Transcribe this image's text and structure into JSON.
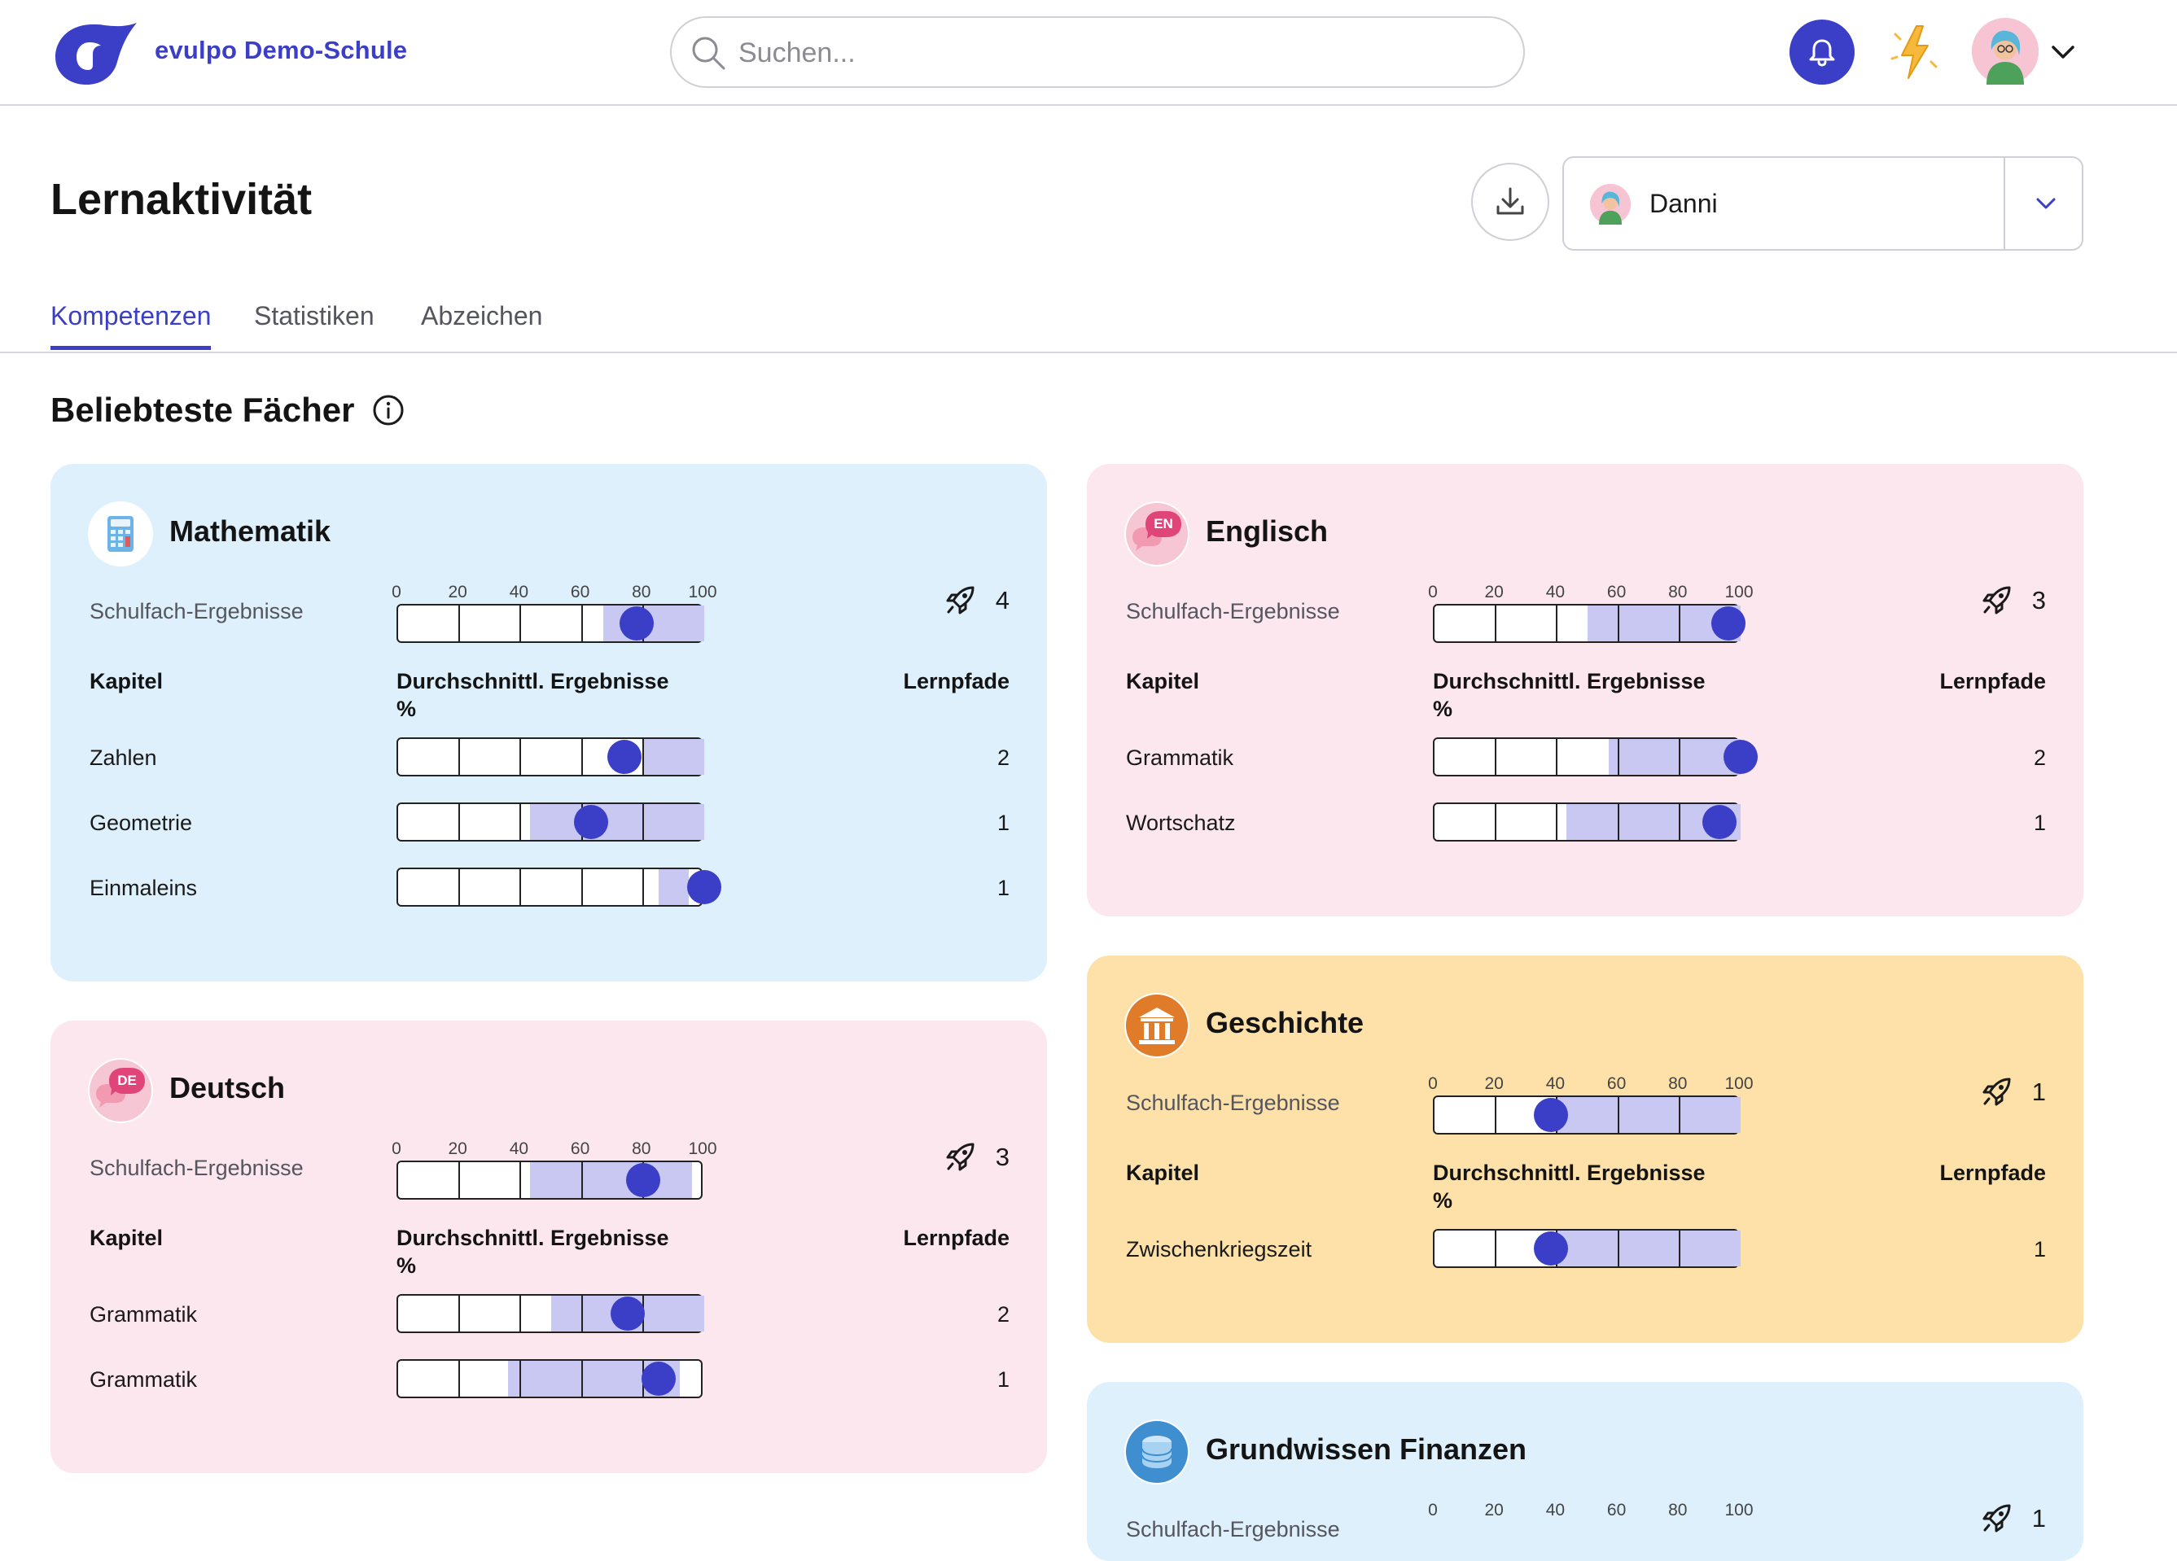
{
  "header": {
    "school_name": "evulpo Demo-Schule",
    "search_placeholder": "Suchen...",
    "accent_color": "#3b3ec7"
  },
  "page": {
    "title": "Lernaktivität",
    "user_select": {
      "selected": "Danni"
    }
  },
  "tabs": [
    {
      "label": "Kompetenzen",
      "active": true
    },
    {
      "label": "Statistiken",
      "active": false
    },
    {
      "label": "Abzeichen",
      "active": false
    }
  ],
  "section": {
    "title": "Beliebteste Fächer"
  },
  "common": {
    "results_label": "Schulfach-Ergebnisse",
    "col_chapter": "Kapitel",
    "col_avg_line1": "Durchschnittl. Ergebnisse",
    "col_avg_line2": "%",
    "col_paths": "Lernpfade",
    "ticks": [
      "0",
      "20",
      "40",
      "60",
      "80",
      "100"
    ]
  },
  "subjects": [
    {
      "id": "mathematik",
      "name": "Mathematik",
      "icon": "calculator-icon",
      "color": "blue",
      "lernpfade": "4",
      "overall": {
        "min": 67,
        "max": 100,
        "avg": 78
      },
      "chapters": [
        {
          "name": "Zahlen",
          "lernpfade": "2",
          "min": 80,
          "max": 100,
          "avg": 74
        },
        {
          "name": "Geometrie",
          "lernpfade": "1",
          "min": 43,
          "max": 100,
          "avg": 63
        },
        {
          "name": "Einmaleins",
          "lernpfade": "1",
          "min": 85,
          "max": 95,
          "avg": 100
        }
      ]
    },
    {
      "id": "englisch",
      "name": "Englisch",
      "icon": "speech-bubble-en-icon",
      "badge": "EN",
      "color": "pink",
      "lernpfade": "3",
      "overall": {
        "min": 50,
        "max": 100,
        "avg": 96
      },
      "chapters": [
        {
          "name": "Grammatik",
          "lernpfade": "2",
          "min": 57,
          "max": 100,
          "avg": 100
        },
        {
          "name": "Wortschatz",
          "lernpfade": "1",
          "min": 43,
          "max": 100,
          "avg": 93
        }
      ]
    },
    {
      "id": "deutsch",
      "name": "Deutsch",
      "icon": "speech-bubble-de-icon",
      "badge": "DE",
      "color": "pink",
      "lernpfade": "3",
      "overall": {
        "min": 43,
        "max": 96,
        "avg": 80
      },
      "chapters": [
        {
          "name": "Grammatik",
          "lernpfade": "2",
          "min": 50,
          "max": 100,
          "avg": 75
        },
        {
          "name": "Grammatik",
          "lernpfade": "1",
          "min": 36,
          "max": 92,
          "avg": 85
        }
      ]
    },
    {
      "id": "geschichte",
      "name": "Geschichte",
      "icon": "temple-icon",
      "color": "yellow",
      "lernpfade": "1",
      "overall": {
        "min": 40,
        "max": 100,
        "avg": 38
      },
      "chapters": [
        {
          "name": "Zwischenkriegszeit",
          "lernpfade": "1",
          "min": 40,
          "max": 100,
          "avg": 38
        }
      ]
    },
    {
      "id": "finanzen",
      "name": "Grundwissen Finanzen",
      "icon": "coins-icon",
      "color": "blue",
      "lernpfade": "1"
    }
  ]
}
